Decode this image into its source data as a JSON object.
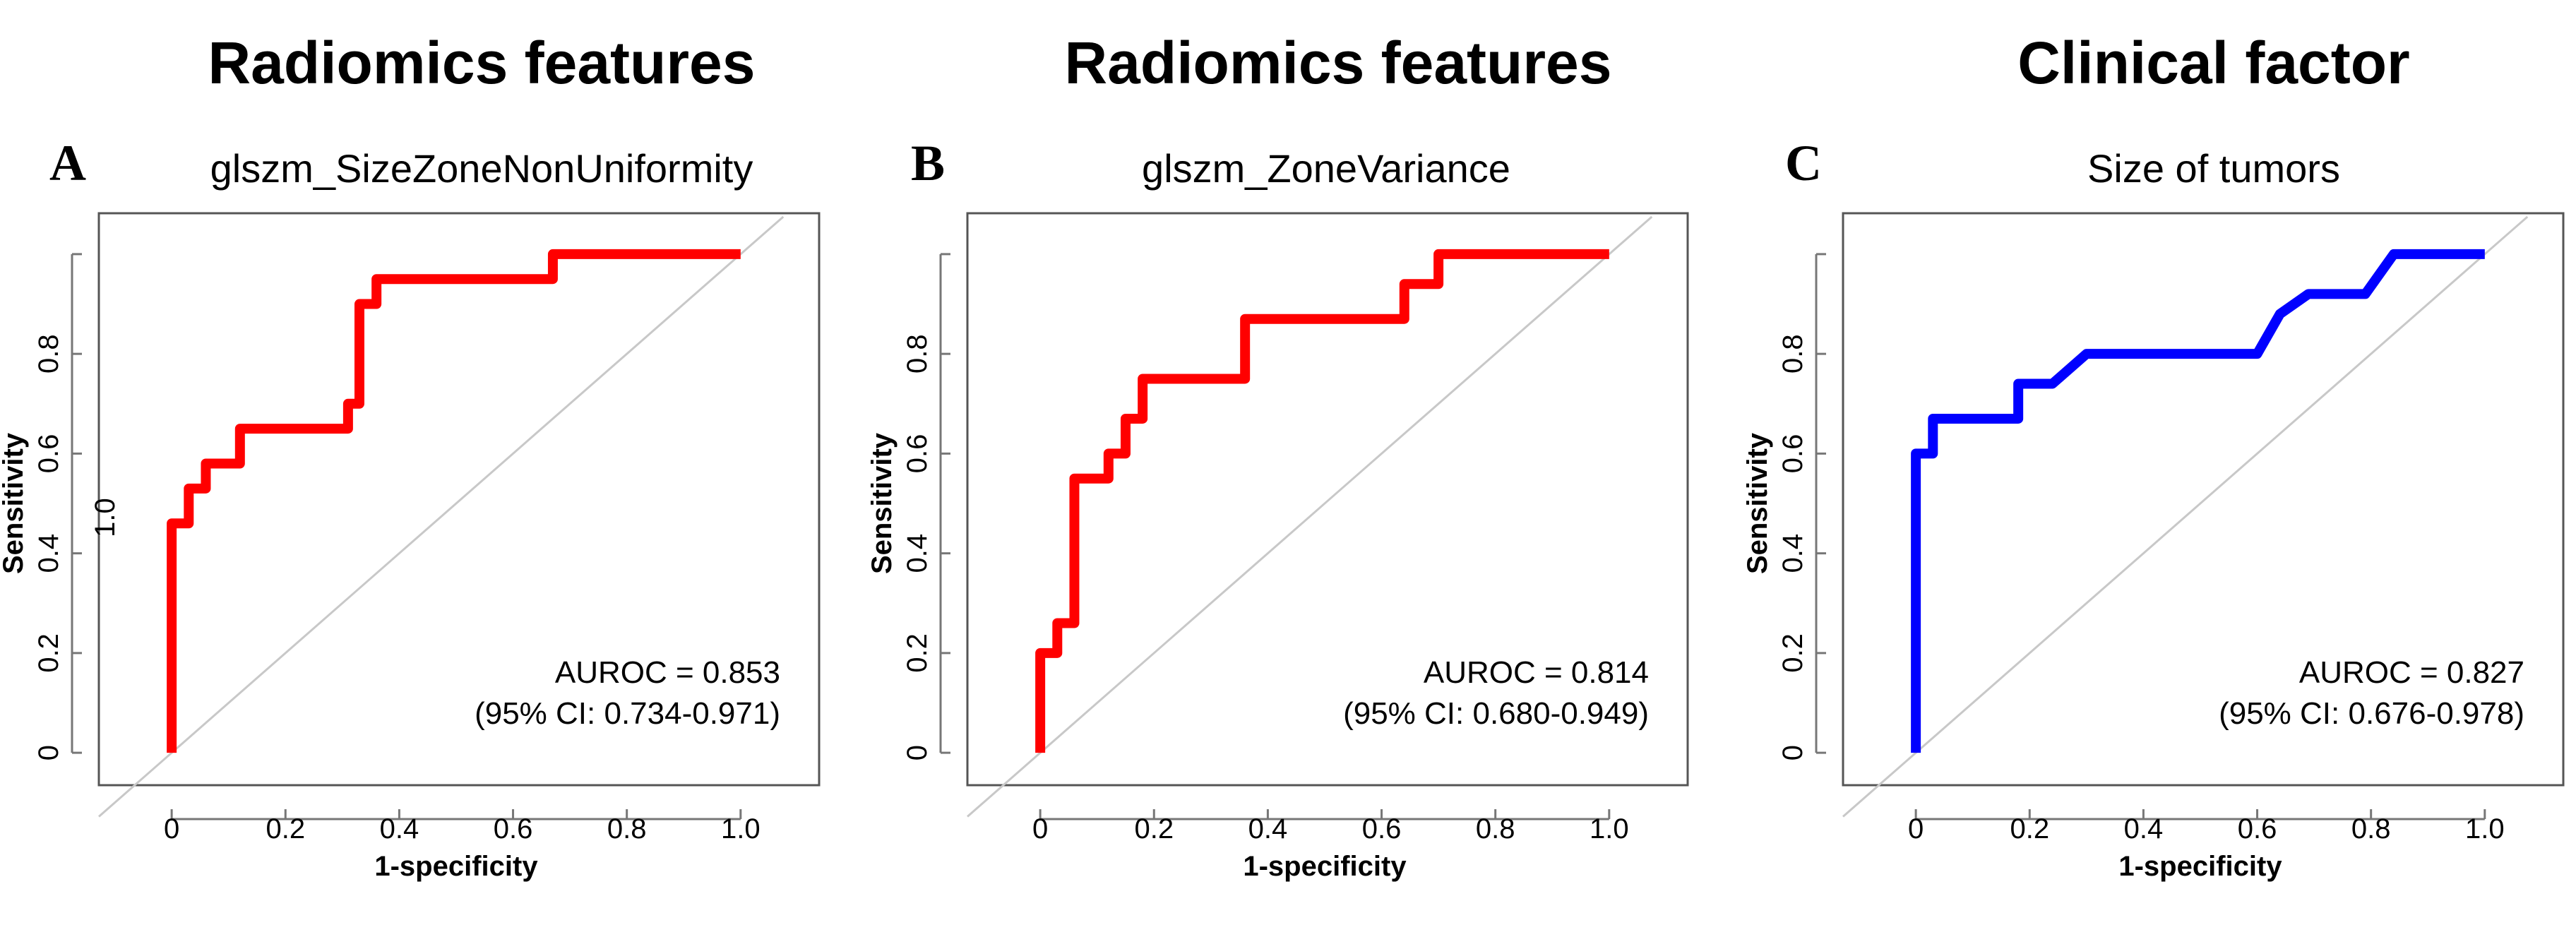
{
  "chart_data": [
    {
      "type": "line",
      "column_header": "Radiomics features",
      "panel_letter": "A",
      "title": "glszm_SizeZoneNonUniformity",
      "xlabel": "1-specificity",
      "ylabel": "Sensitivity",
      "stray_ylabel": "1.0",
      "xlim": [
        0,
        1
      ],
      "ylim": [
        0,
        1
      ],
      "xticks": [
        "0",
        "0.2",
        "0.4",
        "0.6",
        "0.8",
        "1.0"
      ],
      "yticks": [
        "0",
        "0.2",
        "0.4",
        "0.6",
        "0.8"
      ],
      "line_color": "#ff0000",
      "reference_line": "diagonal",
      "series": [
        {
          "name": "ROC",
          "x": [
            0,
            0,
            0.03,
            0.03,
            0.06,
            0.06,
            0.12,
            0.12,
            0.31,
            0.31,
            0.33,
            0.33,
            0.36,
            0.36,
            0.67,
            0.67,
            1.0
          ],
          "y": [
            0,
            0.46,
            0.46,
            0.53,
            0.53,
            0.58,
            0.58,
            0.65,
            0.65,
            0.7,
            0.7,
            0.9,
            0.9,
            0.95,
            0.95,
            1.0,
            1.0
          ]
        }
      ],
      "annotation_lines": [
        "AUROC = 0.853",
        "(95% CI: 0.734-0.971)"
      ]
    },
    {
      "type": "line",
      "column_header": "Radiomics features",
      "panel_letter": "B",
      "title": "glszm_ZoneVariance",
      "xlabel": "1-specificity",
      "ylabel": "Sensitivity",
      "xlim": [
        0,
        1
      ],
      "ylim": [
        0,
        1
      ],
      "xticks": [
        "0",
        "0.2",
        "0.4",
        "0.6",
        "0.8",
        "1.0"
      ],
      "yticks": [
        "0",
        "0.2",
        "0.4",
        "0.6",
        "0.8"
      ],
      "line_color": "#ff0000",
      "reference_line": "diagonal",
      "series": [
        {
          "name": "ROC",
          "x": [
            0,
            0,
            0.03,
            0.03,
            0.06,
            0.06,
            0.12,
            0.12,
            0.15,
            0.15,
            0.18,
            0.18,
            0.36,
            0.36,
            0.64,
            0.64,
            0.7,
            0.7,
            1.0
          ],
          "y": [
            0,
            0.2,
            0.2,
            0.26,
            0.26,
            0.55,
            0.55,
            0.6,
            0.6,
            0.67,
            0.67,
            0.75,
            0.75,
            0.87,
            0.87,
            0.94,
            0.94,
            1.0,
            1.0
          ]
        }
      ],
      "annotation_lines": [
        "AUROC = 0.814",
        "(95% CI: 0.680-0.949)"
      ]
    },
    {
      "type": "line",
      "column_header": "Clinical factor",
      "panel_letter": "C",
      "title": "Size of tumors",
      "xlabel": "1-specificity",
      "ylabel": "Sensitivity",
      "xlim": [
        0,
        1
      ],
      "ylim": [
        0,
        1
      ],
      "xticks": [
        "0",
        "0.2",
        "0.4",
        "0.6",
        "0.8",
        "1.0"
      ],
      "yticks": [
        "0",
        "0.2",
        "0.4",
        "0.6",
        "0.8"
      ],
      "line_color": "#0000ff",
      "reference_line": "diagonal",
      "series": [
        {
          "name": "ROC",
          "x": [
            0,
            0,
            0.03,
            0.03,
            0.18,
            0.18,
            0.24,
            0.3,
            0.6,
            0.64,
            0.69,
            0.79,
            0.84,
            1.0
          ],
          "y": [
            0,
            0.6,
            0.6,
            0.67,
            0.67,
            0.74,
            0.74,
            0.8,
            0.8,
            0.88,
            0.92,
            0.92,
            1.0,
            1.0
          ]
        }
      ],
      "annotation_lines": [
        "AUROC = 0.827",
        "(95% CI: 0.676-0.978)"
      ]
    }
  ]
}
